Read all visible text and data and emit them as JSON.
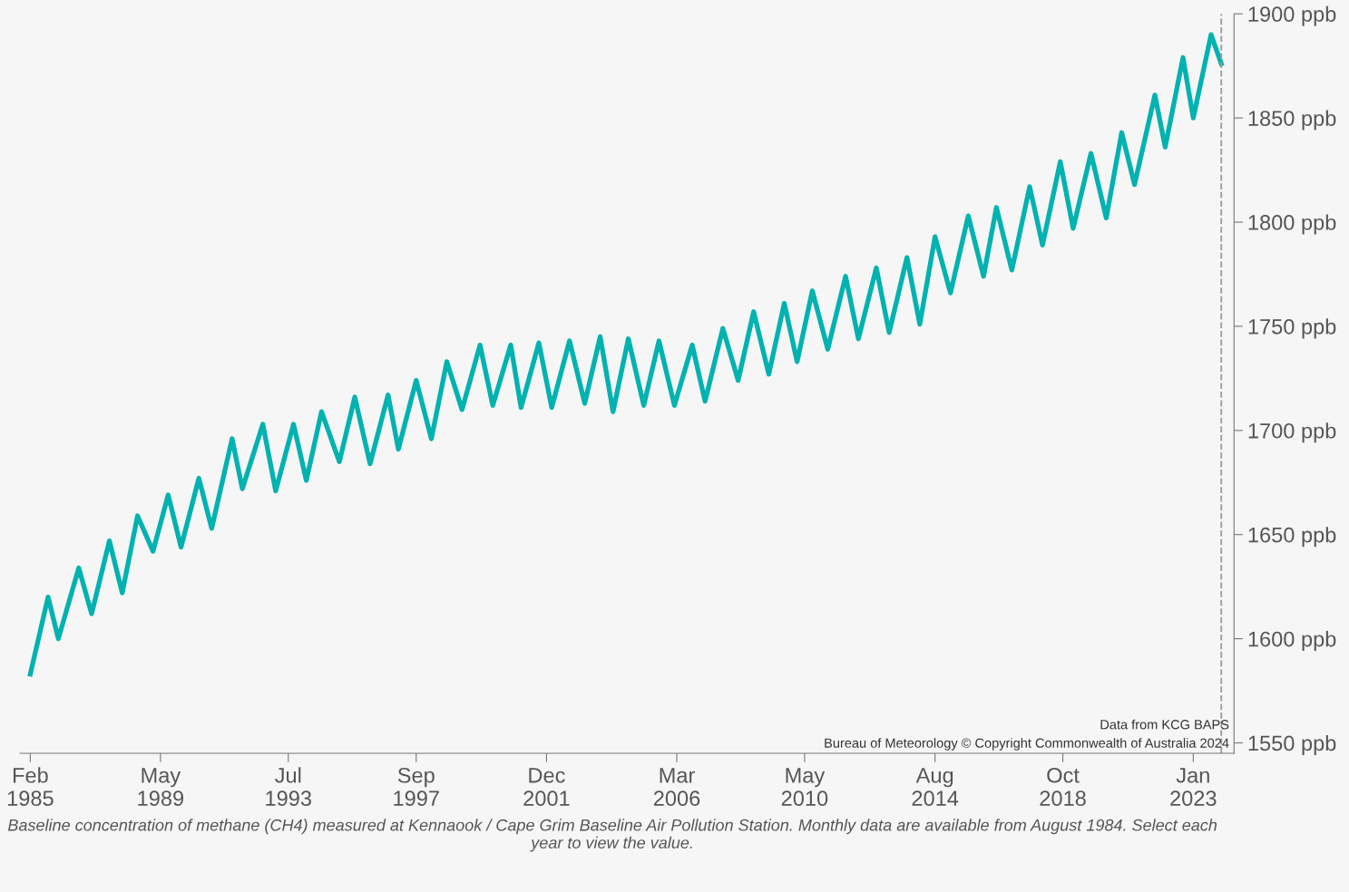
{
  "chart_data": {
    "type": "line",
    "annotations": [
      "Data from KCG BAPS",
      "Bureau of Meteorology © Copyright Commonwealth of Australia 2024",
      "Baseline concentration of methane (CH4) measured at Kennaook / Cape Grim Baseline Air Pollution Station. Monthly data are available from August 1984. Select each year to view the value."
    ],
    "x": [
      "1985-02",
      "1985-09",
      "1986-01",
      "1986-09",
      "1987-02",
      "1987-09",
      "1988-02",
      "1988-08",
      "1989-02",
      "1989-08",
      "1990-01",
      "1990-08",
      "1991-01",
      "1991-09",
      "1992-01",
      "1992-09",
      "1993-02",
      "1993-09",
      "1994-02",
      "1994-08",
      "1995-03",
      "1995-09",
      "1996-03",
      "1996-10",
      "1997-02",
      "1997-09",
      "1998-03",
      "1998-09",
      "1999-03",
      "1999-10",
      "2000-03",
      "2000-10",
      "2001-02",
      "2001-09",
      "2002-02",
      "2002-09",
      "2003-03",
      "2003-09",
      "2004-02",
      "2004-08",
      "2005-02",
      "2005-08",
      "2006-02",
      "2006-09",
      "2007-02",
      "2007-09",
      "2008-03",
      "2008-09",
      "2009-03",
      "2009-09",
      "2010-02",
      "2010-08",
      "2011-02",
      "2011-09",
      "2012-02",
      "2012-09",
      "2013-02",
      "2013-09",
      "2014-02",
      "2014-08",
      "2015-02",
      "2015-09",
      "2016-03",
      "2016-08",
      "2017-02",
      "2017-09",
      "2018-02",
      "2018-09",
      "2019-02",
      "2019-09",
      "2020-03",
      "2020-09",
      "2021-02",
      "2021-10",
      "2022-02",
      "2022-09",
      "2023-01",
      "2023-08",
      "2023-12"
    ],
    "series": [
      {
        "color": "#00b2b0",
        "values": [
          1583,
          1620,
          1600,
          1634,
          1612,
          1647,
          1622,
          1659,
          1642,
          1669,
          1644,
          1677,
          1653,
          1696,
          1672,
          1703,
          1671,
          1703,
          1676,
          1709,
          1685,
          1716,
          1684,
          1717,
          1691,
          1724,
          1696,
          1733,
          1710,
          1741,
          1712,
          1741,
          1711,
          1742,
          1711,
          1743,
          1713,
          1745,
          1709,
          1744,
          1712,
          1743,
          1712,
          1741,
          1714,
          1749,
          1724,
          1757,
          1727,
          1761,
          1733,
          1767,
          1739,
          1774,
          1744,
          1778,
          1747,
          1783,
          1751,
          1793,
          1766,
          1803,
          1774,
          1807,
          1777,
          1817,
          1789,
          1829,
          1797,
          1833,
          1802,
          1843,
          1818,
          1861,
          1836,
          1879,
          1850,
          1890,
          1876
        ]
      }
    ],
    "xlim": [
      "1984-10",
      "2024-05"
    ],
    "xticks": [
      {
        "value": "1985-02",
        "label": "Feb\n1985"
      },
      {
        "value": "1989-05",
        "label": "May\n1989"
      },
      {
        "value": "1993-07",
        "label": "Jul\n1993"
      },
      {
        "value": "1997-09",
        "label": "Sep\n1997"
      },
      {
        "value": "2001-12",
        "label": "Dec\n2001"
      },
      {
        "value": "2006-03",
        "label": "Mar\n2006"
      },
      {
        "value": "2010-05",
        "label": "May\n2010"
      },
      {
        "value": "2014-08",
        "label": "Aug\n2014"
      },
      {
        "value": "2018-10",
        "label": "Oct\n2018"
      },
      {
        "value": "2023-01",
        "label": "Jan\n2023"
      }
    ],
    "ylim": [
      1545,
      1900
    ],
    "yticks": [
      {
        "value": 1550,
        "label": "1550 ppb"
      },
      {
        "value": 1600,
        "label": "1600 ppb"
      },
      {
        "value": 1650,
        "label": "1650 ppb"
      },
      {
        "value": 1700,
        "label": "1700 ppb"
      },
      {
        "value": 1750,
        "label": "1750 ppb"
      },
      {
        "value": 1800,
        "label": "1800 ppb"
      },
      {
        "value": 1850,
        "label": "1850 ppb"
      },
      {
        "value": 1900,
        "label": "1900 ppb"
      }
    ],
    "ref_lines": [
      {
        "axis": "x",
        "value": "2023-12",
        "color": "#999999",
        "line_style": "dashed"
      }
    ],
    "grid": false,
    "legend": false,
    "marker": "none",
    "line_style": "solid"
  }
}
